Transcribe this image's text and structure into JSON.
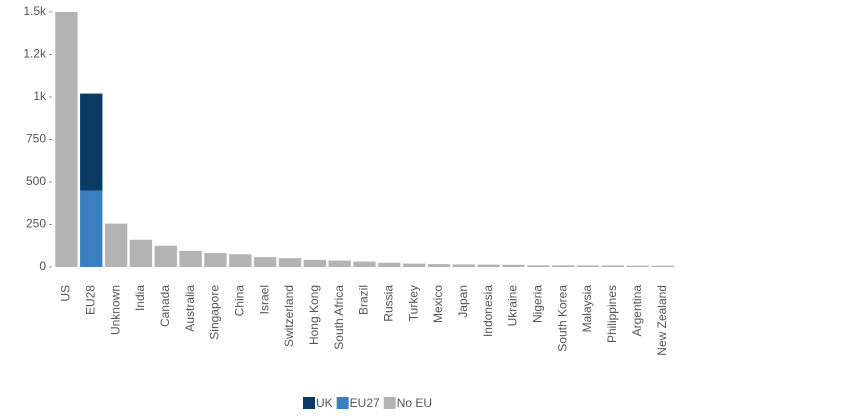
{
  "chart_data": {
    "type": "bar",
    "stacked": true,
    "categories": [
      "US",
      "EU28",
      "Unknown",
      "India",
      "Canada",
      "Australia",
      "Singapore",
      "China",
      "Israel",
      "Switzerland",
      "Hong Kong",
      "South Africa",
      "Brazil",
      "Russia",
      "Turkey",
      "Mexico",
      "Japan",
      "Indonesia",
      "Ukraine",
      "Nigeria",
      "South Korea",
      "Malaysia",
      "Philippines",
      "Argentina",
      "New Zealand"
    ],
    "series": [
      {
        "name": "UK",
        "color": "#0b3a66",
        "values": [
          null,
          570,
          null,
          null,
          null,
          null,
          null,
          null,
          null,
          null,
          null,
          null,
          null,
          null,
          null,
          null,
          null,
          null,
          null,
          null,
          null,
          null,
          null,
          null,
          null
        ]
      },
      {
        "name": "EU27",
        "color": "#3a7fbf",
        "values": [
          null,
          450,
          null,
          null,
          null,
          null,
          null,
          null,
          null,
          null,
          null,
          null,
          null,
          null,
          null,
          null,
          null,
          null,
          null,
          null,
          null,
          null,
          null,
          null,
          null
        ]
      },
      {
        "name": "No EU",
        "color": "#b3b3b3",
        "values": [
          1500,
          null,
          255,
          160,
          125,
          95,
          82,
          75,
          58,
          52,
          42,
          38,
          32,
          25,
          20,
          17,
          15,
          14,
          13,
          10,
          10,
          9,
          9,
          8,
          8
        ]
      }
    ],
    "ylim": [
      0,
      1500
    ],
    "yticks": [
      0,
      250,
      500,
      750,
      {
        "value": 1000,
        "label": "1k"
      },
      {
        "value": 1250,
        "label": "1.2k"
      },
      {
        "value": 1500,
        "label": "1.5k"
      }
    ],
    "grid": false
  }
}
